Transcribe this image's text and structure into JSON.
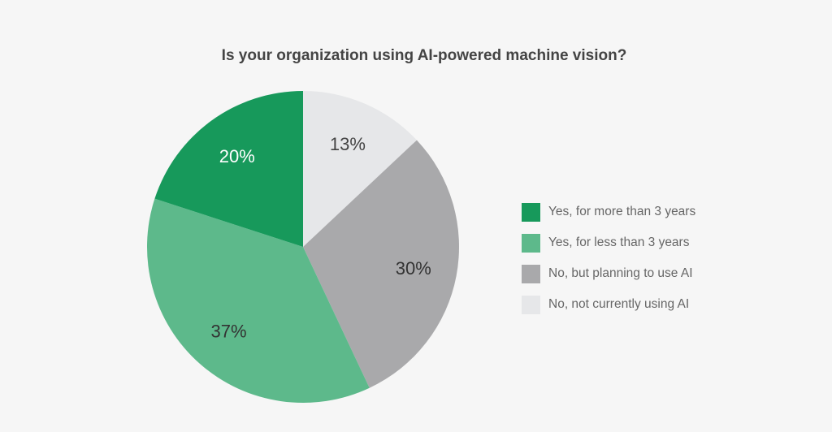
{
  "chart_data": {
    "type": "pie",
    "title": "Is your organization using AI-powered machine vision?",
    "slices": [
      {
        "label": "No, not currently using AI",
        "value": 13,
        "display": "13%",
        "color": "#e6e7e9",
        "text_color": "#444444"
      },
      {
        "label": "No, but planning to use AI",
        "value": 30,
        "display": "30%",
        "color": "#a9a9ab",
        "text_color": "#333333"
      },
      {
        "label": "Yes, for less than 3 years",
        "value": 37,
        "display": "37%",
        "color": "#5db98b",
        "text_color": "#333333"
      },
      {
        "label": "Yes, for more than 3 years",
        "value": 20,
        "display": "20%",
        "color": "#17995b",
        "text_color": "#ffffff"
      }
    ],
    "legend": {
      "placement": "right",
      "order": [
        "Yes, for more than 3 years",
        "Yes, for less than 3 years",
        "No, but planning to use AI",
        "No, not currently using AI"
      ]
    }
  }
}
